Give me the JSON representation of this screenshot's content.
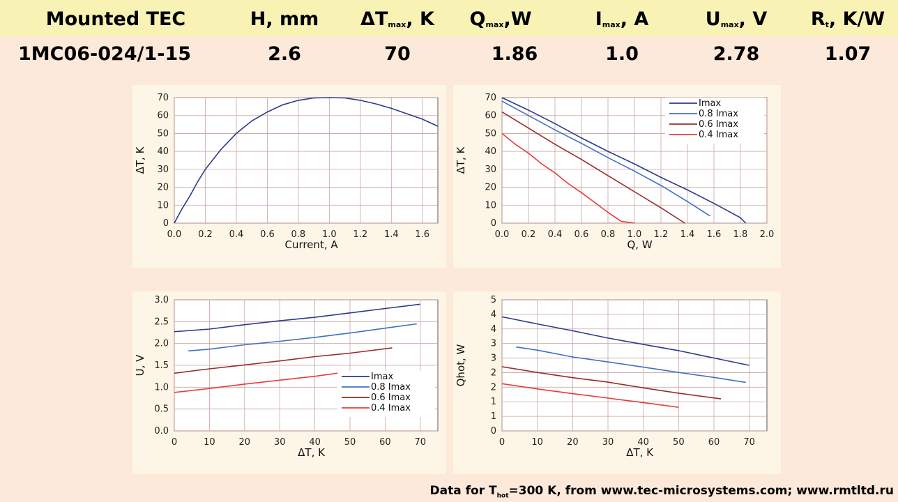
{
  "table": {
    "headers": [
      "Mounted TEC",
      "H, mm",
      "ΔT",
      ", K",
      "Q",
      ",W",
      "I",
      ", A",
      "U",
      ", V",
      "R",
      ", K/W"
    ],
    "sub_max": "max",
    "sub_t": "t",
    "row": [
      "1MC06-024/1-15",
      "2.6",
      "70",
      "1.86",
      "1.0",
      "2.78",
      "1.07"
    ]
  },
  "footer": {
    "pre": "Data for T",
    "sub": "hot",
    "post": "=300 K, from www.tec-microsystems.com; www.rmtltd.ru"
  },
  "colors": {
    "imax": "#2b3a8c",
    "i08": "#3f6fc8",
    "i06": "#9c2b2b",
    "i04": "#e83a3a",
    "grid": "#c9a3a3",
    "plot_bg": "#ffffff",
    "panel_bg": "#fdf5e6"
  },
  "chart_data": [
    {
      "type": "line",
      "xlabel": "Current, A",
      "ylabel": "ΔT, K",
      "xlim": [
        0,
        1.7
      ],
      "ylim": [
        0,
        70
      ],
      "xticks": [
        0,
        0.2,
        0.4,
        0.6,
        0.8,
        1.0,
        1.2,
        1.4,
        1.6
      ],
      "xtick_labels": [
        "0.0",
        "0.2",
        "0.4",
        "0.6",
        "0.8",
        "1.0",
        "1.2",
        "1.4",
        "1.6"
      ],
      "yticks": [
        0,
        10,
        20,
        30,
        40,
        50,
        60,
        70
      ],
      "ytick_labels": [
        "0",
        "10",
        "20",
        "30",
        "40",
        "50",
        "60",
        "70"
      ],
      "series": [
        {
          "color_key": "imax",
          "x": [
            0,
            0.05,
            0.1,
            0.15,
            0.2,
            0.3,
            0.4,
            0.5,
            0.6,
            0.7,
            0.8,
            0.9,
            1.0,
            1.1,
            1.2,
            1.3,
            1.4,
            1.5,
            1.6,
            1.7
          ],
          "y": [
            0,
            8,
            15,
            23,
            30,
            41,
            50,
            57,
            62,
            66,
            68.5,
            69.8,
            70,
            69.8,
            68.5,
            66.5,
            64,
            61,
            58,
            54
          ]
        }
      ]
    },
    {
      "type": "line",
      "xlabel": "Q, W",
      "ylabel": "ΔT, K",
      "xlim": [
        0,
        2.0
      ],
      "ylim": [
        0,
        70
      ],
      "xticks": [
        0,
        0.2,
        0.4,
        0.6,
        0.8,
        1.0,
        1.2,
        1.4,
        1.6,
        1.8,
        2.0
      ],
      "xtick_labels": [
        "0.0",
        "0.2",
        "0.4",
        "0.6",
        "0.8",
        "1.0",
        "1.2",
        "1.4",
        "1.6",
        "1.8",
        "2.0"
      ],
      "yticks": [
        0,
        10,
        20,
        30,
        40,
        50,
        60,
        70
      ],
      "ytick_labels": [
        "0",
        "10",
        "20",
        "30",
        "40",
        "50",
        "60",
        "70"
      ],
      "legend": [
        "Imax",
        "0.8 Imax",
        "0.6 Imax",
        "0.4 Imax"
      ],
      "series": [
        {
          "name": "Imax",
          "color_key": "imax",
          "x": [
            0,
            0.2,
            0.4,
            0.6,
            0.8,
            1.0,
            1.2,
            1.4,
            1.6,
            1.8,
            1.84
          ],
          "y": [
            70,
            63,
            55.5,
            47.5,
            40,
            33,
            25.5,
            18.5,
            11,
            3,
            0
          ]
        },
        {
          "name": "0.8 Imax",
          "color_key": "i08",
          "x": [
            0,
            0.2,
            0.4,
            0.6,
            0.8,
            1.0,
            1.2,
            1.4,
            1.57
          ],
          "y": [
            68,
            60,
            52,
            44.5,
            36.5,
            29,
            21,
            12,
            4
          ]
        },
        {
          "name": "0.6 Imax",
          "color_key": "i06",
          "x": [
            0,
            0.2,
            0.4,
            0.6,
            0.8,
            1.0,
            1.2,
            1.38
          ],
          "y": [
            62,
            53,
            44,
            35.5,
            26.5,
            17.5,
            8.5,
            0
          ]
        },
        {
          "name": "0.4 Imax",
          "color_key": "i04",
          "x": [
            0,
            0.1,
            0.2,
            0.3,
            0.4,
            0.5,
            0.6,
            0.7,
            0.8,
            0.9,
            1.0
          ],
          "y": [
            50,
            44,
            39,
            33,
            28,
            22,
            17,
            11.5,
            6,
            1,
            0
          ]
        }
      ]
    },
    {
      "type": "line",
      "xlabel": "ΔT, K",
      "ylabel": "U, V",
      "xlim": [
        0,
        75
      ],
      "ylim": [
        0,
        3.0
      ],
      "xticks": [
        0,
        10,
        20,
        30,
        40,
        50,
        60,
        70
      ],
      "xtick_labels": [
        "0",
        "10",
        "20",
        "30",
        "40",
        "50",
        "60",
        "70"
      ],
      "yticks": [
        0,
        0.5,
        1.0,
        1.5,
        2.0,
        2.5,
        3.0
      ],
      "ytick_labels": [
        "0.0",
        "0.5",
        "1.0",
        "1.5",
        "2.0",
        "2.5",
        "3.0"
      ],
      "legend": [
        "Imax",
        "0.8 Imax",
        "0.6 Imax",
        "0.4 Imax"
      ],
      "series": [
        {
          "name": "Imax",
          "color_key": "imax",
          "x": [
            0,
            10,
            20,
            30,
            40,
            50,
            60,
            70
          ],
          "y": [
            2.27,
            2.33,
            2.43,
            2.52,
            2.6,
            2.7,
            2.8,
            2.9
          ]
        },
        {
          "name": "0.8 Imax",
          "color_key": "i08",
          "x": [
            4,
            10,
            20,
            30,
            40,
            50,
            60,
            69
          ],
          "y": [
            1.83,
            1.87,
            1.97,
            2.05,
            2.14,
            2.24,
            2.35,
            2.45
          ]
        },
        {
          "name": "0.6 Imax",
          "color_key": "i06",
          "x": [
            0,
            10,
            20,
            30,
            40,
            50,
            62
          ],
          "y": [
            1.32,
            1.42,
            1.51,
            1.6,
            1.7,
            1.78,
            1.9
          ]
        },
        {
          "name": "0.4 Imax",
          "color_key": "i04",
          "x": [
            0,
            10,
            20,
            30,
            40,
            50
          ],
          "y": [
            0.88,
            0.97,
            1.07,
            1.16,
            1.25,
            1.36
          ]
        }
      ]
    },
    {
      "type": "line",
      "xlabel": "ΔT, K",
      "ylabel": "Qhot, W",
      "xlim": [
        0,
        75
      ],
      "ylim": [
        0,
        5
      ],
      "xticks": [
        0,
        10,
        20,
        30,
        40,
        50,
        60,
        70
      ],
      "xtick_labels": [
        "0",
        "10",
        "20",
        "30",
        "40",
        "50",
        "60",
        "70"
      ],
      "ytick_labels": [
        "0",
        "1",
        "1",
        "2",
        "2",
        "3",
        "3",
        "4",
        "4",
        "5"
      ],
      "series": [
        {
          "name": "Imax",
          "color_key": "imax",
          "x": [
            0,
            10,
            20,
            30,
            40,
            50,
            60,
            70
          ],
          "y": [
            4.35,
            4.08,
            3.82,
            3.54,
            3.3,
            3.06,
            2.78,
            2.5
          ]
        },
        {
          "name": "0.8 Imax",
          "color_key": "i08",
          "x": [
            4,
            10,
            20,
            30,
            40,
            50,
            60,
            69
          ],
          "y": [
            3.2,
            3.08,
            2.82,
            2.63,
            2.43,
            2.23,
            2.04,
            1.85
          ]
        },
        {
          "name": "0.6 Imax",
          "color_key": "i06",
          "x": [
            0,
            10,
            20,
            30,
            40,
            50,
            62
          ],
          "y": [
            2.45,
            2.23,
            2.03,
            1.86,
            1.64,
            1.44,
            1.22
          ]
        },
        {
          "name": "0.4 Imax",
          "color_key": "i04",
          "x": [
            0,
            10,
            20,
            30,
            40,
            50
          ],
          "y": [
            1.8,
            1.6,
            1.42,
            1.25,
            1.08,
            0.9
          ]
        }
      ]
    }
  ]
}
